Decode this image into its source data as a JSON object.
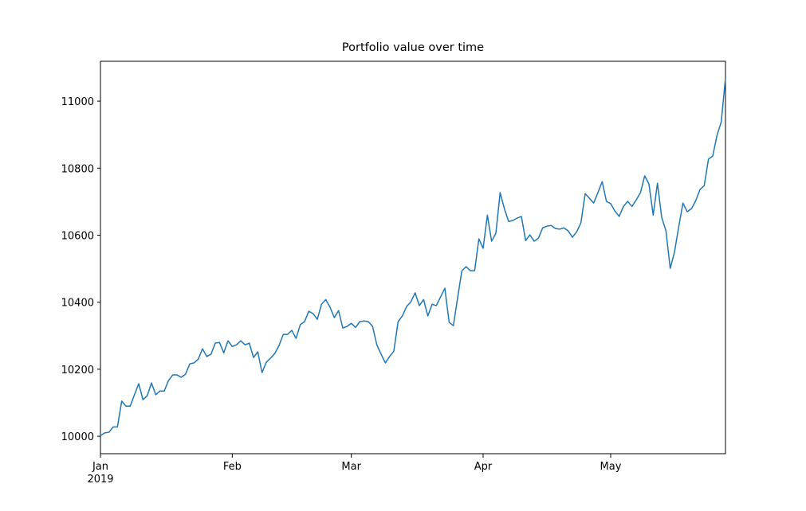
{
  "chart_data": {
    "type": "line",
    "title": "Portfolio value over time",
    "series": [
      {
        "color": "#1f77b4",
        "values": [
          10002,
          10010,
          10012,
          10028,
          10028,
          10105,
          10090,
          10090,
          10124,
          10157,
          10109,
          10121,
          10159,
          10124,
          10135,
          10135,
          10166,
          10183,
          10183,
          10176,
          10185,
          10216,
          10219,
          10230,
          10261,
          10238,
          10245,
          10278,
          10280,
          10249,
          10285,
          10268,
          10273,
          10285,
          10273,
          10278,
          10235,
          10252,
          10190,
          10221,
          10233,
          10247,
          10271,
          10304,
          10304,
          10316,
          10292,
          10333,
          10342,
          10373,
          10366,
          10349,
          10394,
          10408,
          10385,
          10354,
          10375,
          10323,
          10328,
          10337,
          10325,
          10342,
          10344,
          10342,
          10328,
          10273,
          10245,
          10219,
          10238,
          10254,
          10342,
          10359,
          10387,
          10401,
          10428,
          10390,
          10408,
          10359,
          10394,
          10390,
          10416,
          10442,
          10340,
          10330,
          10413,
          10494,
          10506,
          10494,
          10494,
          10589,
          10561,
          10660,
          10582,
          10606,
          10727,
          10679,
          10641,
          10644,
          10651,
          10656,
          10584,
          10601,
          10582,
          10591,
          10622,
          10627,
          10629,
          10620,
          10618,
          10622,
          10613,
          10594,
          10610,
          10637,
          10724,
          10710,
          10696,
          10727,
          10760,
          10701,
          10694,
          10672,
          10656,
          10686,
          10701,
          10686,
          10705,
          10727,
          10777,
          10753,
          10660,
          10755,
          10653,
          10613,
          10501,
          10549,
          10625,
          10696,
          10670,
          10679,
          10703,
          10736,
          10748,
          10827,
          10836,
          10898,
          10938,
          11069
        ]
      }
    ],
    "xticks": [
      {
        "value": "2019-01",
        "label": "Jan\n2019"
      },
      {
        "value": "2019-02",
        "label": "Feb"
      },
      {
        "value": "2019-03",
        "label": "Mar"
      },
      {
        "value": "2019-04",
        "label": "Apr"
      },
      {
        "value": "2019-05",
        "label": "May"
      }
    ],
    "ylim": [
      9948,
      11119
    ],
    "yticks": [
      10000,
      10200,
      10400,
      10600,
      10800,
      11000
    ]
  }
}
